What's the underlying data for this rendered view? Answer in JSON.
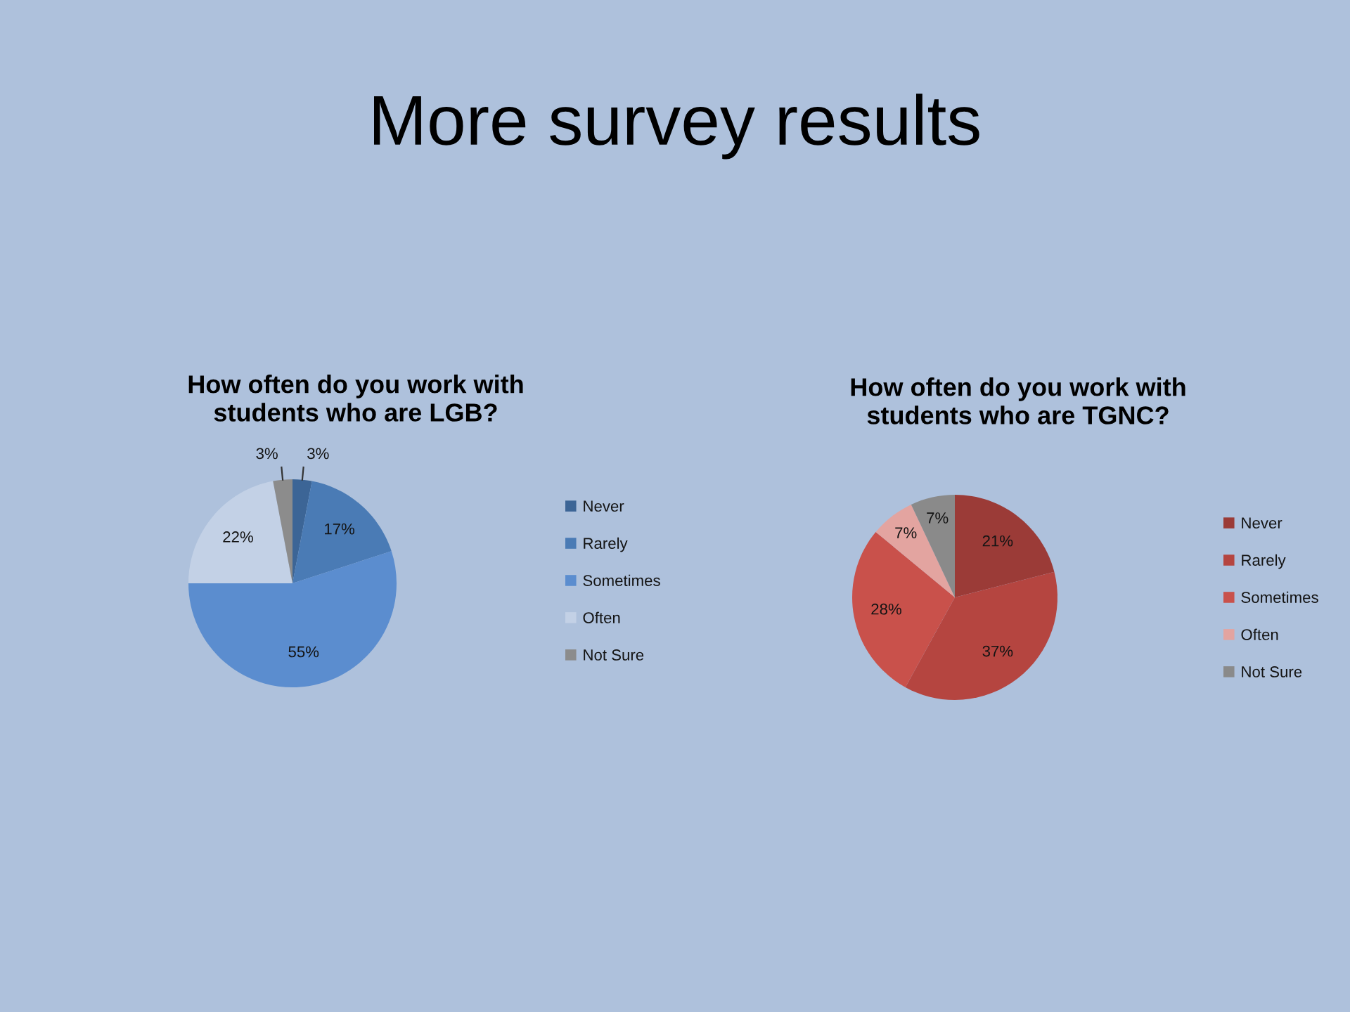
{
  "chart_data": [
    {
      "type": "other",
      "title": "More survey results"
    },
    {
      "type": "pie",
      "title": "How often do you work with\nstudents who are LGB?",
      "categories": [
        "Never",
        "Rarely",
        "Sometimes",
        "Often",
        "Not Sure"
      ],
      "values": [
        3,
        17,
        55,
        22,
        3
      ],
      "colors": [
        "#3c6596",
        "#4a7bb5",
        "#5b8dcf",
        "#c3d1e6",
        "#8c8c8c"
      ],
      "value_labels": [
        "3%",
        "17%",
        "55%",
        "22%",
        "3%"
      ],
      "legend": "right"
    },
    {
      "type": "pie",
      "title": "How often do you work with\nstudents who are TGNC?",
      "categories": [
        "Never",
        "Rarely",
        "Sometimes",
        "Often",
        "Not Sure"
      ],
      "values": [
        21,
        37,
        28,
        7,
        7
      ],
      "colors": [
        "#9b3b37",
        "#b54540",
        "#c9514b",
        "#e3a4a0",
        "#8a8a8a"
      ],
      "value_labels": [
        "21%",
        "37%",
        "28%",
        "7%",
        "7%"
      ],
      "legend": "right"
    }
  ]
}
